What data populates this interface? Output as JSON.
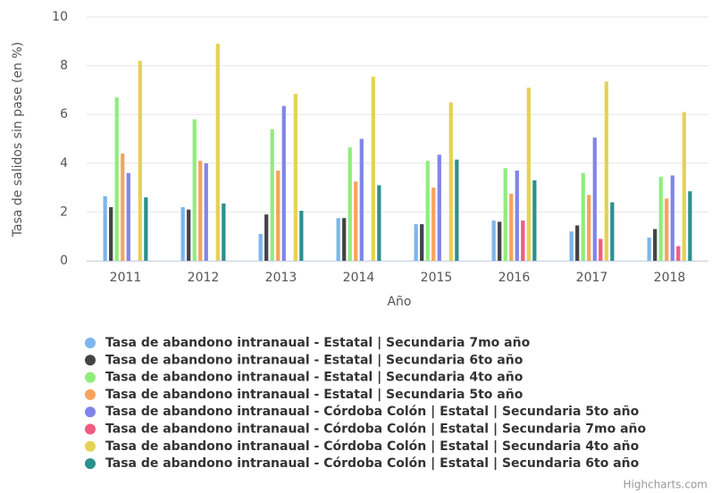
{
  "chart_data": {
    "type": "bar",
    "x_label": "Año",
    "y_label": "Tasa de salidos sin pase (en %)",
    "credits": "Highcharts.com",
    "categories": [
      "2011",
      "2012",
      "2013",
      "2014",
      "2015",
      "2016",
      "2017",
      "2018"
    ],
    "ylim": [
      0,
      10
    ],
    "yticks": [
      0,
      2,
      4,
      6,
      8,
      10
    ],
    "grid": true,
    "series": [
      {
        "name": "Tasa de abandono intranaual - Estatal | Secundaria 7mo año",
        "color": "#7cb5ec",
        "values": [
          2.65,
          2.2,
          1.1,
          1.75,
          1.5,
          1.65,
          1.2,
          0.95
        ]
      },
      {
        "name": "Tasa de abandono intranaual - Estatal | Secundaria 6to año",
        "color": "#434348",
        "values": [
          2.2,
          2.1,
          1.9,
          1.75,
          1.5,
          1.6,
          1.45,
          1.3
        ]
      },
      {
        "name": "Tasa de abandono intranaual - Estatal | Secundaria 4to año",
        "color": "#90ed7d",
        "values": [
          6.7,
          5.8,
          5.4,
          4.65,
          4.1,
          3.8,
          3.6,
          3.45
        ]
      },
      {
        "name": "Tasa de abandono intranaual - Estatal | Secundaria 5to año",
        "color": "#f7a35c",
        "values": [
          4.4,
          4.1,
          3.7,
          3.25,
          3.0,
          2.75,
          2.7,
          2.55
        ]
      },
      {
        "name": "Tasa de abandono intranaual - Córdoba Colón | Estatal | Secundaria 5to año",
        "color": "#8085e9",
        "values": [
          3.6,
          4.0,
          6.35,
          5.0,
          4.35,
          3.7,
          5.05,
          3.5
        ]
      },
      {
        "name": "Tasa de abandono intranaual - Córdoba Colón | Estatal | Secundaria 7mo año",
        "color": "#f15c80",
        "values": [
          null,
          null,
          null,
          null,
          null,
          1.65,
          0.9,
          0.6
        ]
      },
      {
        "name": "Tasa de abandono intranaual - Córdoba Colón | Estatal | Secundaria 4to año",
        "color": "#e4d354",
        "values": [
          8.2,
          8.9,
          6.85,
          7.55,
          6.5,
          7.1,
          7.35,
          6.1
        ]
      },
      {
        "name": "Tasa de abandono intranaual - Córdoba Colón | Estatal | Secundaria 6to año",
        "color": "#2b908f",
        "values": [
          2.6,
          2.35,
          2.05,
          3.1,
          4.15,
          3.3,
          2.4,
          2.85
        ]
      }
    ]
  }
}
